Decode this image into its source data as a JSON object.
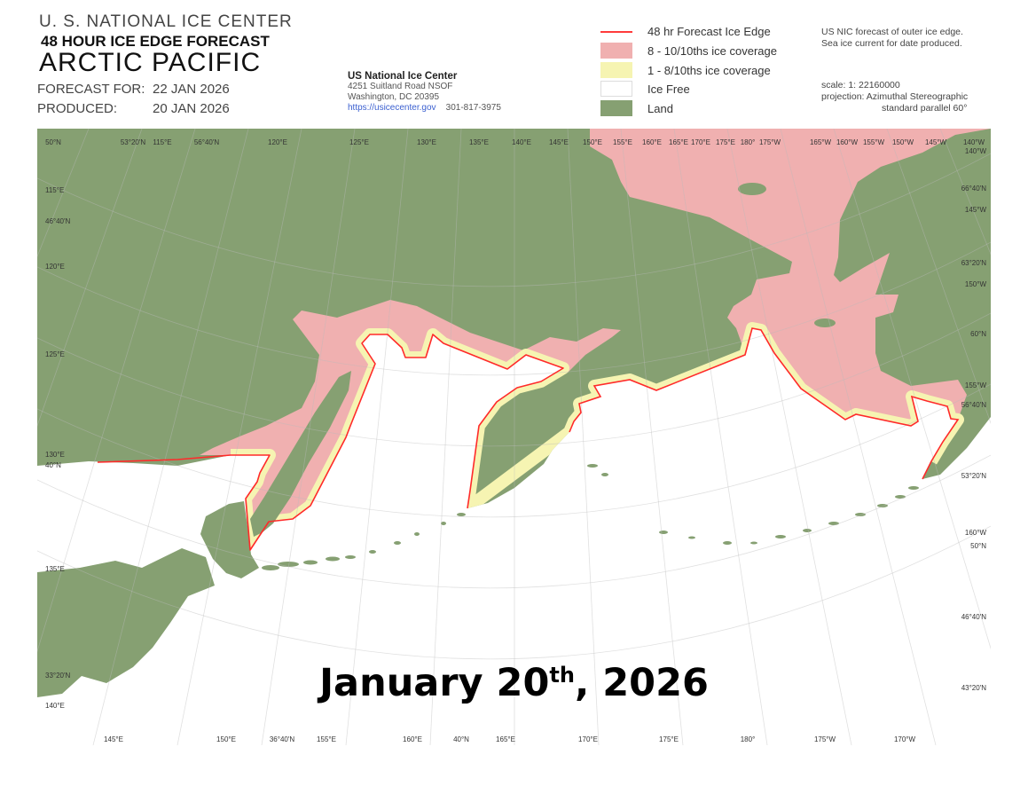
{
  "header": {
    "agency": "U. S. NATIONAL ICE CENTER",
    "product": "48 HOUR ICE EDGE FORECAST",
    "region": "ARCTIC  PACIFIC",
    "forecast_label": "FORECAST FOR:",
    "forecast_date": "22 JAN 2026",
    "produced_label": "PRODUCED:",
    "produced_date": "20 JAN 2026"
  },
  "address": {
    "name": "US National Ice Center",
    "street": "4251 Suitland Road    NSOF",
    "city": "Washington, DC  20395",
    "url": "https://usicecenter.gov",
    "phone": "301-817-3975"
  },
  "legend": [
    {
      "label": "48 hr Forecast Ice Edge",
      "color": "#ff3b3b",
      "kind": "line"
    },
    {
      "label": "8 - 10/10ths ice coverage",
      "color": "#f0b0b0",
      "kind": "fill"
    },
    {
      "label": "1 - 8/10ths ice coverage",
      "color": "#f6f4b2",
      "kind": "fill"
    },
    {
      "label": "Ice Free",
      "color": "#ffffff",
      "kind": "fill"
    },
    {
      "label": "Land",
      "color": "#86a072",
      "kind": "fill"
    }
  ],
  "notes": {
    "line1": "US NIC forecast of outer ice edge.",
    "line2": "Sea ice current for date produced.",
    "scale": "scale:     1: 22160000",
    "projection": "projection: Azimuthal Stereographic",
    "parallel": "standard parallel 60°"
  },
  "graticule_labels": {
    "top": [
      "50°N",
      "53°20'N",
      "115°E",
      "56°40'N",
      "120°E",
      "125°E",
      "130°E",
      "135°E",
      "140°E",
      "145°E",
      "150°E",
      "155°E",
      "160°E",
      "165°E",
      "170°E",
      "175°E",
      "180°",
      "175°W",
      "165°W",
      "160°W",
      "155°W",
      "150°W",
      "145°W",
      "140°W"
    ],
    "right": [
      "140°W",
      "66°40'N",
      "145°W",
      "63°20'N",
      "150°W",
      "60°N",
      "155°W",
      "56°40'N",
      "53°20'N",
      "160°W",
      "50°N",
      "46°40'N",
      "43°20'N"
    ],
    "left": [
      "115°E",
      "46°40'N",
      "120°E",
      "125°E",
      "130°E",
      "40°N",
      "135°E",
      "33°20'N",
      "140°E"
    ],
    "bottom": [
      "145°E",
      "150°E",
      "36°40'N",
      "155°E",
      "160°E",
      "40°N",
      "165°E",
      "170°E",
      "175°E",
      "180°",
      "175°W",
      "170°W"
    ]
  },
  "caption": {
    "main": "January 20",
    "sup": "th",
    "rest": ", 2026"
  }
}
